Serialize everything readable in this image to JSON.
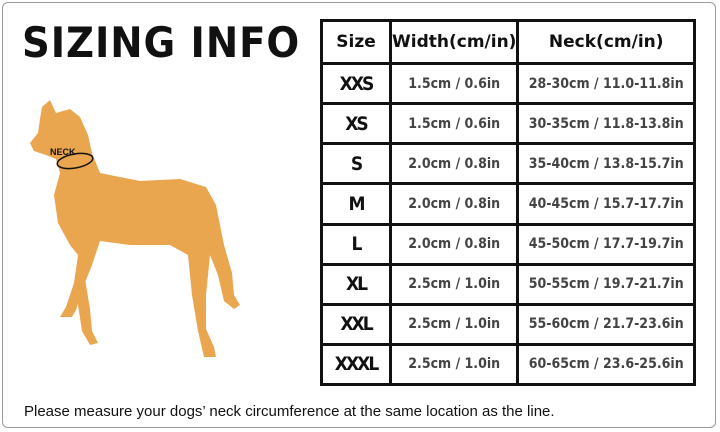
{
  "title": "SIZING INFO",
  "neck_label": "NECK",
  "colors": {
    "dog": "#E9A64F",
    "border": "#111111"
  },
  "table": {
    "headers": [
      "Size",
      "Width(cm/in)",
      "Neck(cm/in)"
    ],
    "rows": [
      [
        "XXS",
        "1.5cm / 0.6in",
        "28-30cm / 11.0-11.8in"
      ],
      [
        "XS",
        "1.5cm / 0.6in",
        "30-35cm / 11.8-13.8in"
      ],
      [
        "S",
        "2.0cm / 0.8in",
        "35-40cm / 13.8-15.7in"
      ],
      [
        "M",
        "2.0cm / 0.8in",
        "40-45cm / 15.7-17.7in"
      ],
      [
        "L",
        "2.0cm / 0.8in",
        "45-50cm / 17.7-19.7in"
      ],
      [
        "XL",
        "2.5cm / 1.0in",
        "50-55cm / 19.7-21.7in"
      ],
      [
        "XXL",
        "2.5cm / 1.0in",
        "55-60cm / 21.7-23.6in"
      ],
      [
        "XXXL",
        "2.5cm / 1.0in",
        "60-65cm / 23.6-25.6in"
      ]
    ]
  },
  "note": "Please measure your dogs’  neck circumference at the same location as the line."
}
